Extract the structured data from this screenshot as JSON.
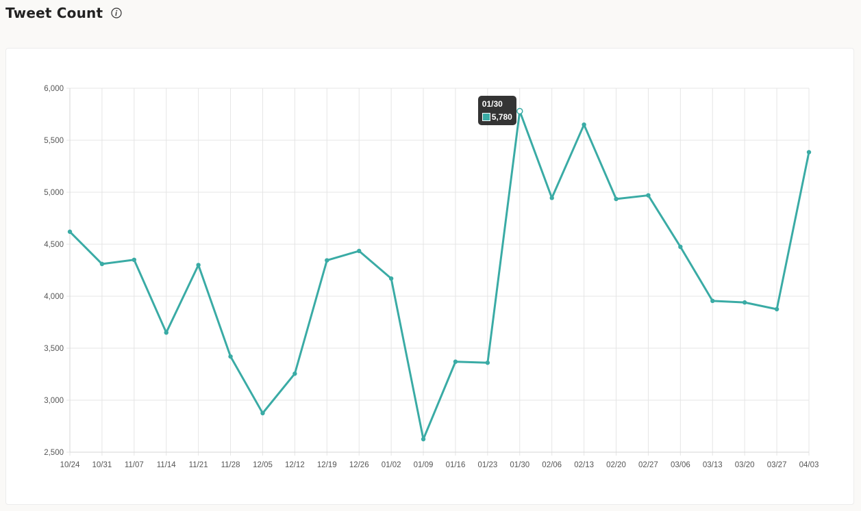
{
  "header": {
    "title": "Tweet Count",
    "info_icon": "info-circle-icon"
  },
  "colors": {
    "line": "#3aaba5",
    "grid": "#e5e5e5",
    "tooltip_bg": "#1e1e1e"
  },
  "chart_data": {
    "type": "line",
    "title": "Tweet Count",
    "xlabel": "",
    "ylabel": "",
    "ylim": [
      2500,
      6000
    ],
    "yticks": [
      2500,
      3000,
      3500,
      4000,
      4500,
      5000,
      5500,
      6000
    ],
    "ytick_labels": [
      "2,500",
      "3,000",
      "3,500",
      "4,000",
      "4,500",
      "5,000",
      "5,500",
      "6,000"
    ],
    "grid": true,
    "categories": [
      "10/24",
      "10/31",
      "11/07",
      "11/14",
      "11/21",
      "11/28",
      "12/05",
      "12/12",
      "12/19",
      "12/26",
      "01/02",
      "01/09",
      "01/16",
      "01/23",
      "01/30",
      "02/06",
      "02/13",
      "02/20",
      "02/27",
      "03/06",
      "03/13",
      "03/20",
      "03/27",
      "04/03"
    ],
    "series": [
      {
        "values": [
          4620,
          4310,
          4350,
          3650,
          4300,
          3420,
          2875,
          3255,
          4345,
          4435,
          4170,
          2625,
          3370,
          3360,
          5780,
          4945,
          5650,
          4935,
          4970,
          4475,
          3955,
          3940,
          3875,
          5385
        ]
      }
    ],
    "tooltip": {
      "category": "01/30",
      "value_label": "5,780"
    }
  }
}
